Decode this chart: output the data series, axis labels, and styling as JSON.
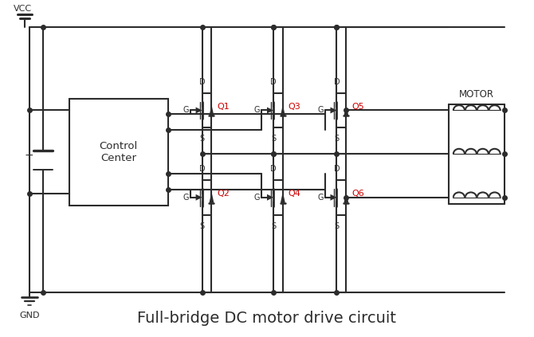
{
  "title": "Full-bridge DC motor drive circuit",
  "title_fontsize": 14,
  "line_color": "#2c2c2c",
  "red_color": "#cc0000",
  "bg_color": "#ffffff",
  "lw": 1.5,
  "figsize": [
    6.7,
    4.23
  ],
  "dpi": 100,
  "vcc_label": "VCC",
  "gnd_label": "GND",
  "motor_label": "MOTOR",
  "control_label": "Control\nCenter",
  "q_labels": [
    "Q1",
    "Q2",
    "Q3",
    "Q4",
    "Q5",
    "Q6"
  ]
}
